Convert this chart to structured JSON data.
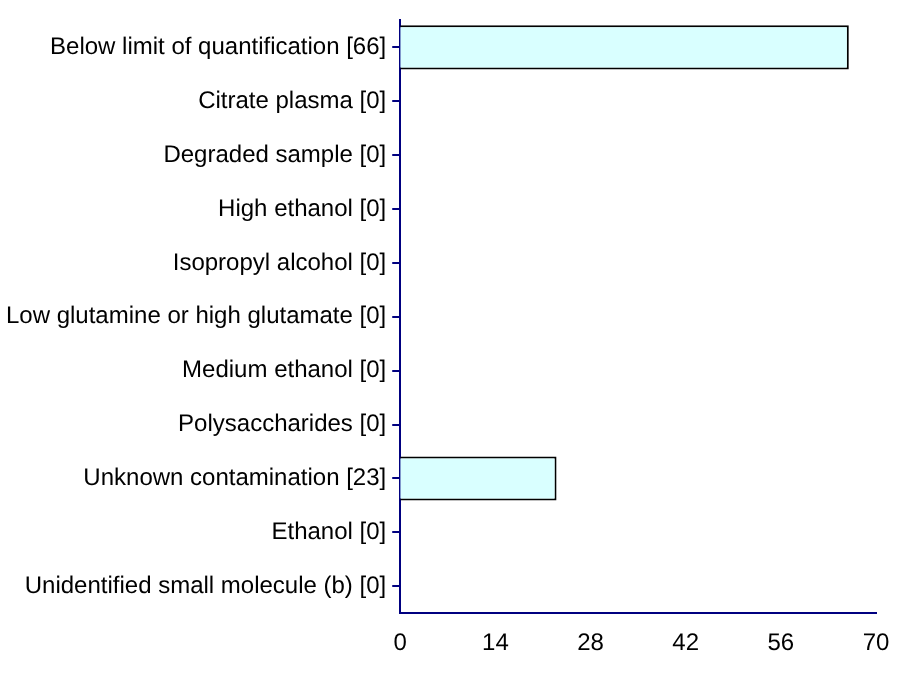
{
  "chart_data": {
    "type": "bar",
    "orientation": "horizontal",
    "categories": [
      "Below limit of quantification [66]",
      "Citrate plasma [0]",
      "Degraded sample [0]",
      "High ethanol [0]",
      "Isopropyl alcohol [0]",
      "Low glutamine or high glutamate [0]",
      "Medium ethanol [0]",
      "Polysaccharides [0]",
      "Unknown contamination [23]",
      "Ethanol [0]",
      "Unidentified small molecule (b) [0]"
    ],
    "values": [
      66,
      0,
      0,
      0,
      0,
      0,
      0,
      0,
      23,
      0,
      0
    ],
    "color": "#d9ffff",
    "xlim": [
      0,
      70
    ],
    "xticks": [
      0,
      14,
      28,
      42,
      56,
      70
    ],
    "grid": false,
    "legend": false
  }
}
